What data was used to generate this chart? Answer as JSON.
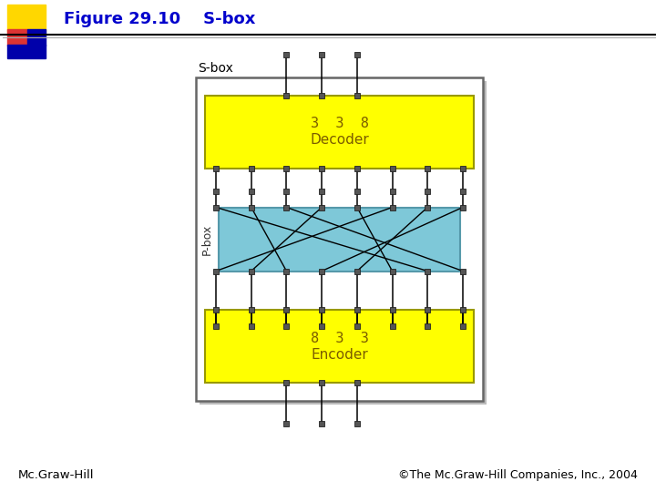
{
  "title": "Figure 29.10    S-box",
  "title_color": "#0000CC",
  "title_fontsize": 13,
  "bg_color": "#ffffff",
  "outer_box_edge": "#888888",
  "decoder_color": "#FFFF00",
  "decoder_edge": "#999900",
  "pbox_color": "#7EC8D8",
  "pbox_edge": "#5599AA",
  "encoder_color": "#FFFF00",
  "encoder_edge": "#999900",
  "node_color": "#555555",
  "line_color": "#000000",
  "decoder_label1": "3  3  8",
  "decoder_label2": "Decoder",
  "encoder_label1": "8  3  3",
  "encoder_label2": "Encoder",
  "pbox_label": "P-box",
  "sbox_label": "S-box",
  "footer_left": "Mc.Graw-Hill",
  "footer_right": "©The Mc.Graw-Hill Companies, Inc., 2004",
  "sq_yellow": "#FFD700",
  "sq_red": "#DD3333",
  "sq_blue": "#0000AA",
  "pbox_perm": [
    6,
    2,
    7,
    1,
    5,
    0,
    4,
    3
  ]
}
